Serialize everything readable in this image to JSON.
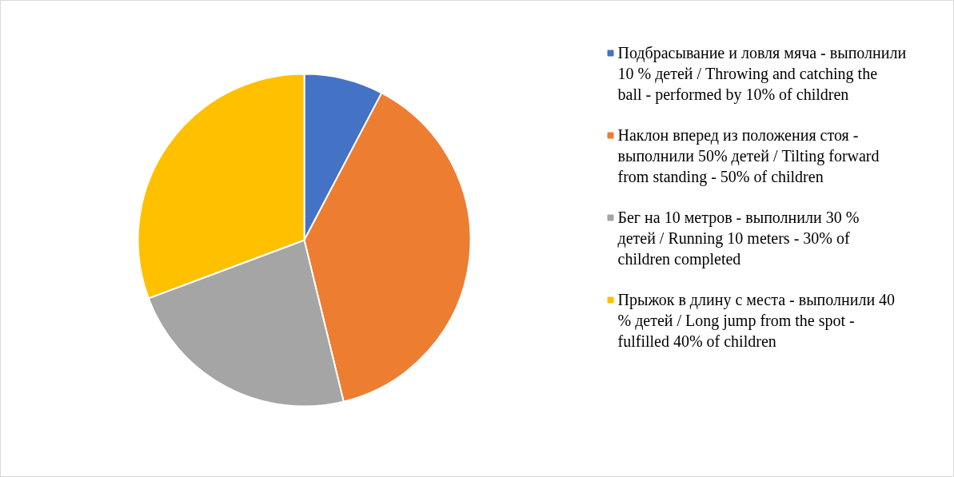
{
  "chart_data": {
    "type": "pie",
    "categories": [
      "Подбрасывание и ловля мяча - выполнили 10 % детей / Throwing and catching the ball - performed by 10% of children",
      "Наклон вперед из положения стоя - выполнили 50% детей / Tilting forward from standing - 50% of children",
      "Бег на 10 метров - выполнили 30 % детей / Running 10 meters - 30% of children completed",
      "Прыжок в длину с места - выполнили 40 % детей / Long jump from the spot - fulfilled 40% of children"
    ],
    "values": [
      7.7,
      38.5,
      23.1,
      30.7
    ],
    "colors": [
      "#4472c4",
      "#ed7d31",
      "#a5a5a5",
      "#ffc000"
    ],
    "legend": "right"
  }
}
